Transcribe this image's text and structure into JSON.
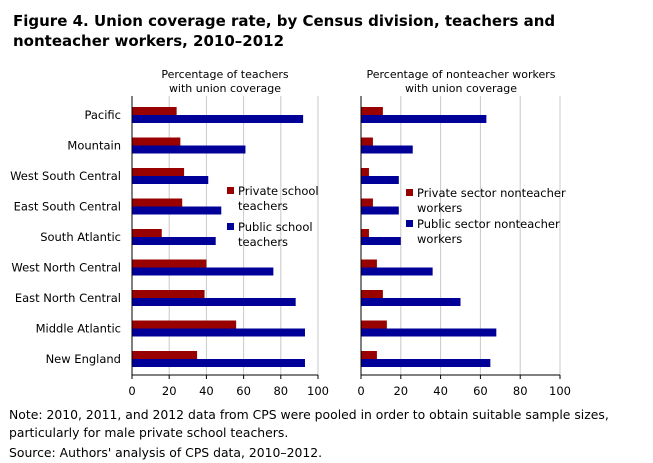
{
  "title": "Figure 4. Union coverage rate, by Census division, teachers and nonteacher workers, 2010–2012",
  "note": "Note: 2010, 2011, and 2012 data from CPS were pooled in order to obtain suitable sample sizes, particularly for male private school teachers.",
  "source": "Source: Authors' analysis of CPS data, 2010–2012.",
  "colors": {
    "private": "#990000",
    "public": "#000099",
    "grid": "#c8c8c8"
  },
  "chart_data": [
    {
      "type": "bar",
      "orientation": "horizontal",
      "title": "Percentage of teachers with union coverage",
      "title_lines": [
        "Percentage of teachers",
        "with union coverage"
      ],
      "categories": [
        "Pacific",
        "Mountain",
        "West South Central",
        "East South Central",
        "South Atlantic",
        "West North Central",
        "East North Central",
        "Middle Atlantic",
        "New England"
      ],
      "series": [
        {
          "name": "Private school teachers",
          "name_lines": [
            "Private school",
            "teachers"
          ],
          "color": "#990000",
          "values": [
            24,
            26,
            28,
            27,
            16,
            40,
            39,
            56,
            35
          ]
        },
        {
          "name": "Public school teachers",
          "name_lines": [
            "Public school",
            "teachers"
          ],
          "color": "#000099",
          "values": [
            92,
            61,
            41,
            48,
            45,
            76,
            88,
            93,
            93
          ]
        }
      ],
      "xlim": [
        0,
        100
      ],
      "xticks": [
        0,
        20,
        40,
        60,
        80,
        100
      ],
      "grid": true,
      "legend": "center-right"
    },
    {
      "type": "bar",
      "orientation": "horizontal",
      "title": "Percentage of nonteacher workers with union coverage",
      "title_lines": [
        "Percentage of nonteacher workers",
        "with union coverage"
      ],
      "categories": [
        "Pacific",
        "Mountain",
        "West South Central",
        "East South Central",
        "South Atlantic",
        "West North Central",
        "East North Central",
        "Middle Atlantic",
        "New England"
      ],
      "series": [
        {
          "name": "Private sector nonteacher workers",
          "name_lines": [
            "Private sector nonteacher",
            "workers"
          ],
          "color": "#990000",
          "values": [
            11,
            6,
            4,
            6,
            4,
            8,
            11,
            13,
            8
          ]
        },
        {
          "name": "Public sector nonteacher workers",
          "name_lines": [
            "Public sector nonteacher",
            "workers"
          ],
          "color": "#000099",
          "values": [
            63,
            26,
            19,
            19,
            20,
            36,
            50,
            68,
            65
          ]
        }
      ],
      "xlim": [
        0,
        100
      ],
      "xticks": [
        0,
        20,
        40,
        60,
        80,
        100
      ],
      "grid": true,
      "legend": "center-right"
    }
  ]
}
